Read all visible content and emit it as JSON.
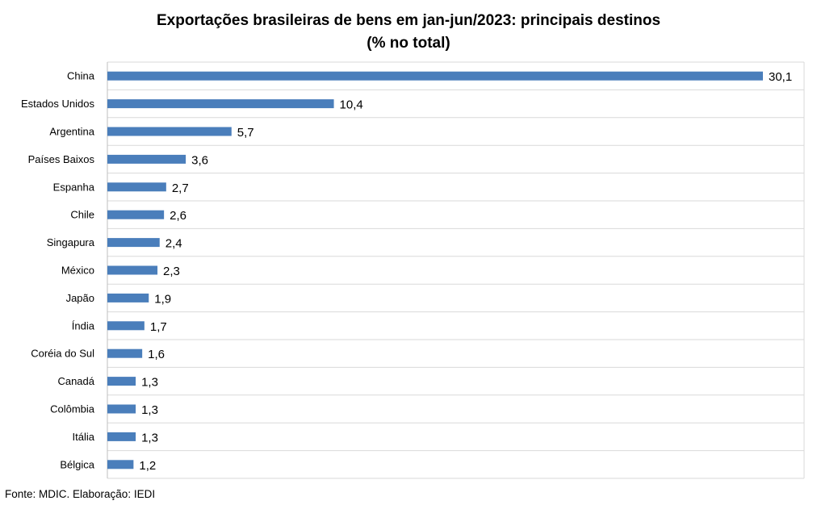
{
  "title_line1": "Exportações brasileiras de bens em jan-jun/2023: principais destinos",
  "title_line2": "(% no total)",
  "source": "Fonte: MDIC. Elaboração: IEDI",
  "chart_data": {
    "type": "bar",
    "orientation": "horizontal",
    "title": "Exportações brasileiras de bens em jan-jun/2023: principais destinos (% no total)",
    "categories": [
      "China",
      "Estados Unidos",
      "Argentina",
      "Países Baixos",
      "Espanha",
      "Chile",
      "Singapura",
      "México",
      "Japão",
      "Índia",
      "Coréia do Sul",
      "Canadá",
      "Colômbia",
      "Itália",
      "Bélgica"
    ],
    "values": [
      30.1,
      10.4,
      5.7,
      3.6,
      2.7,
      2.6,
      2.4,
      2.3,
      1.9,
      1.7,
      1.6,
      1.3,
      1.3,
      1.3,
      1.2
    ],
    "value_labels": [
      "30,1",
      "10,4",
      "5,7",
      "3,6",
      "2,7",
      "2,6",
      "2,4",
      "2,3",
      "1,9",
      "1,7",
      "1,6",
      "1,3",
      "1,3",
      "1,3",
      "1,2"
    ],
    "xlim": [
      0,
      30.1
    ],
    "grid": true,
    "bar_color": "#4a7ebb",
    "grid_color": "#d9d9d9"
  }
}
